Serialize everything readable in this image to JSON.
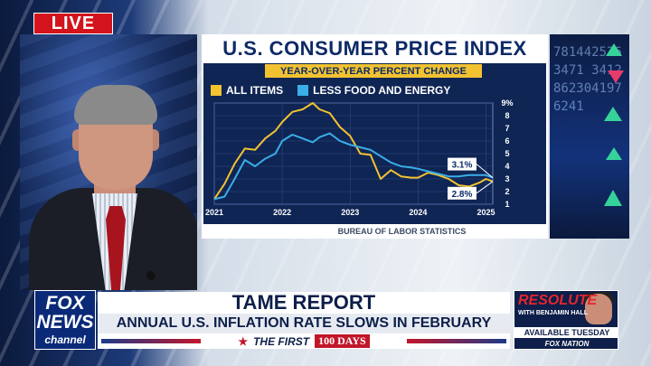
{
  "live_label": "LIVE",
  "graphic": {
    "title": "U.S. CONSUMER PRICE INDEX",
    "subtitle": "YEAR-OVER-YEAR PERCENT CHANGE",
    "source": "BUREAU OF LABOR STATISTICS"
  },
  "chart_data": {
    "type": "line",
    "title": "U.S. CONSUMER PRICE INDEX",
    "subtitle": "YEAR-OVER-YEAR PERCENT CHANGE",
    "xlabel": "",
    "ylabel": "",
    "x_ticks": [
      "2021",
      "2022",
      "2023",
      "2024",
      "2025"
    ],
    "y_ticks": [
      "1",
      "2",
      "3",
      "4",
      "5",
      "6",
      "7",
      "8",
      "9%"
    ],
    "ylim": [
      1,
      9
    ],
    "xlim": [
      2021.0,
      2025.1
    ],
    "grid": true,
    "legend": "top-left",
    "series": [
      {
        "name": "ALL ITEMS",
        "color": "#f2c230",
        "x": [
          2021.0,
          2021.15,
          2021.3,
          2021.45,
          2021.6,
          2021.75,
          2021.9,
          2022.0,
          2022.15,
          2022.3,
          2022.45,
          2022.55,
          2022.7,
          2022.85,
          2023.0,
          2023.15,
          2023.3,
          2023.45,
          2023.6,
          2023.75,
          2023.9,
          2024.0,
          2024.15,
          2024.3,
          2024.45,
          2024.6,
          2024.75,
          2024.9,
          2025.0,
          2025.1
        ],
        "y": [
          1.4,
          2.6,
          4.2,
          5.4,
          5.3,
          6.2,
          6.8,
          7.5,
          8.3,
          8.5,
          9.0,
          8.5,
          8.2,
          7.1,
          6.4,
          5.0,
          4.9,
          3.0,
          3.7,
          3.2,
          3.1,
          3.1,
          3.5,
          3.3,
          3.0,
          2.5,
          2.4,
          2.7,
          3.0,
          2.8
        ]
      },
      {
        "name": "LESS FOOD AND ENERGY",
        "color": "#3aaee8",
        "x": [
          2021.0,
          2021.15,
          2021.3,
          2021.45,
          2021.6,
          2021.75,
          2021.9,
          2022.0,
          2022.15,
          2022.3,
          2022.45,
          2022.55,
          2022.7,
          2022.85,
          2023.0,
          2023.15,
          2023.3,
          2023.45,
          2023.6,
          2023.75,
          2023.9,
          2024.0,
          2024.15,
          2024.3,
          2024.45,
          2024.6,
          2024.75,
          2024.9,
          2025.0,
          2025.1
        ],
        "y": [
          1.4,
          1.6,
          3.0,
          4.5,
          4.0,
          4.6,
          5.0,
          6.0,
          6.5,
          6.2,
          5.9,
          6.3,
          6.6,
          6.0,
          5.7,
          5.5,
          5.3,
          4.8,
          4.3,
          4.0,
          3.9,
          3.8,
          3.6,
          3.4,
          3.2,
          3.2,
          3.3,
          3.3,
          3.3,
          3.1
        ]
      }
    ],
    "annotations": [
      {
        "text": "3.1%",
        "series": "LESS FOOD AND ENERGY",
        "value": 3.1
      },
      {
        "text": "2.8%",
        "series": "ALL ITEMS",
        "value": 2.8
      }
    ]
  },
  "ticker_digits": "7814425263471 3412862304197 6241",
  "lower_third": {
    "network_logo": {
      "line1": "FOX",
      "line2": "NEWS",
      "line3": "channel"
    },
    "headline": "TAME REPORT",
    "subheadline": "ANNUAL U.S. INFLATION RATE SLOWS IN FEBRUARY",
    "ribbon": {
      "star": "★",
      "first": "THE FIRST",
      "days": "100 DAYS"
    },
    "promo": {
      "show": "RESOLUTE",
      "host": "WITH BENJAMIN HALL",
      "availability": "AVAILABLE TUESDAY",
      "platform": "FOX NATION"
    }
  },
  "colors": {
    "live_red": "#d3141c",
    "navy": "#0d2a66",
    "gold": "#f2c230",
    "cyan": "#3aaee8"
  }
}
